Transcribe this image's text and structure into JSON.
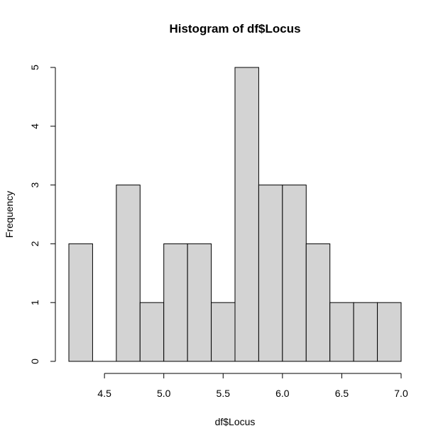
{
  "chart_data": {
    "type": "bar",
    "title": "Histogram of df$Locus",
    "xlabel": "df$Locus",
    "ylabel": "Frequency",
    "bin_edges": [
      4.2,
      4.4,
      4.6,
      4.8,
      5.0,
      5.2,
      5.4,
      5.6,
      5.8,
      6.0,
      6.2,
      6.4,
      6.6,
      6.8,
      7.0
    ],
    "values": [
      2,
      0,
      3,
      1,
      2,
      2,
      1,
      5,
      3,
      3,
      2,
      1,
      1,
      1
    ],
    "xlim": [
      4.2,
      7.0
    ],
    "ylim": [
      0,
      5
    ],
    "x_ticks": [
      4.5,
      5.0,
      5.5,
      6.0,
      6.5,
      7.0
    ],
    "x_tick_labels": [
      "4.5",
      "5.0",
      "5.5",
      "6.0",
      "6.5",
      "7.0"
    ],
    "y_ticks": [
      0,
      1,
      2,
      3,
      4,
      5
    ],
    "y_tick_labels": [
      "0",
      "1",
      "2",
      "3",
      "4",
      "5"
    ],
    "bar_color": "#d3d3d3",
    "edge_color": "#000000",
    "grid": false,
    "legend": "none"
  }
}
